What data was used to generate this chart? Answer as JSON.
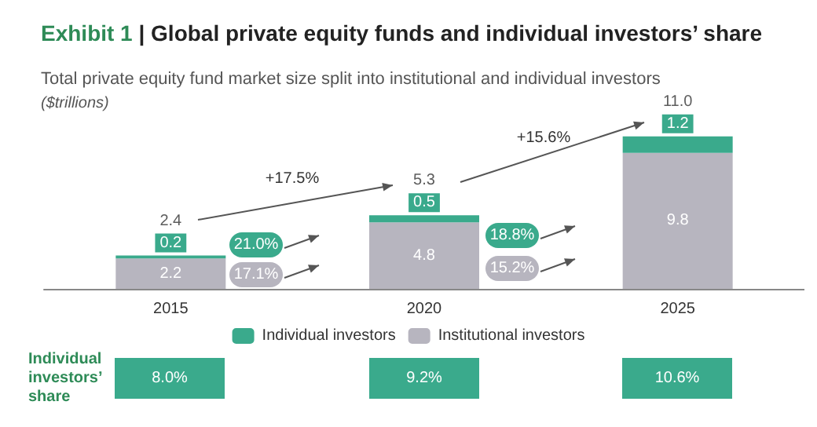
{
  "chart_data": {
    "type": "bar",
    "title": "Exhibit 1 | Global private equity funds and individual investors’ share",
    "subtitle": "Total private equity fund market size split into institutional and individual investors",
    "ylabel": "($trillions)",
    "categories": [
      "2015",
      "2020",
      "2025"
    ],
    "stacked": true,
    "series": [
      {
        "name": "Institutional investors",
        "color": "#b7b5bf",
        "values": [
          2.2,
          4.8,
          9.8
        ]
      },
      {
        "name": "Individual investors",
        "color": "#3aaa8c",
        "values": [
          0.2,
          0.5,
          1.2
        ]
      }
    ],
    "data_labels": true,
    "totals": [
      "2.4",
      "5.3",
      "11.0"
    ],
    "legend": "bottom",
    "annotations": [
      "+17.5%",
      "+15.6%",
      "21.0%",
      "17.1%",
      "18.8%",
      "15.2%",
      "Individual investors’ share",
      "8.0%",
      "9.2%",
      "10.6%"
    ]
  }
}
